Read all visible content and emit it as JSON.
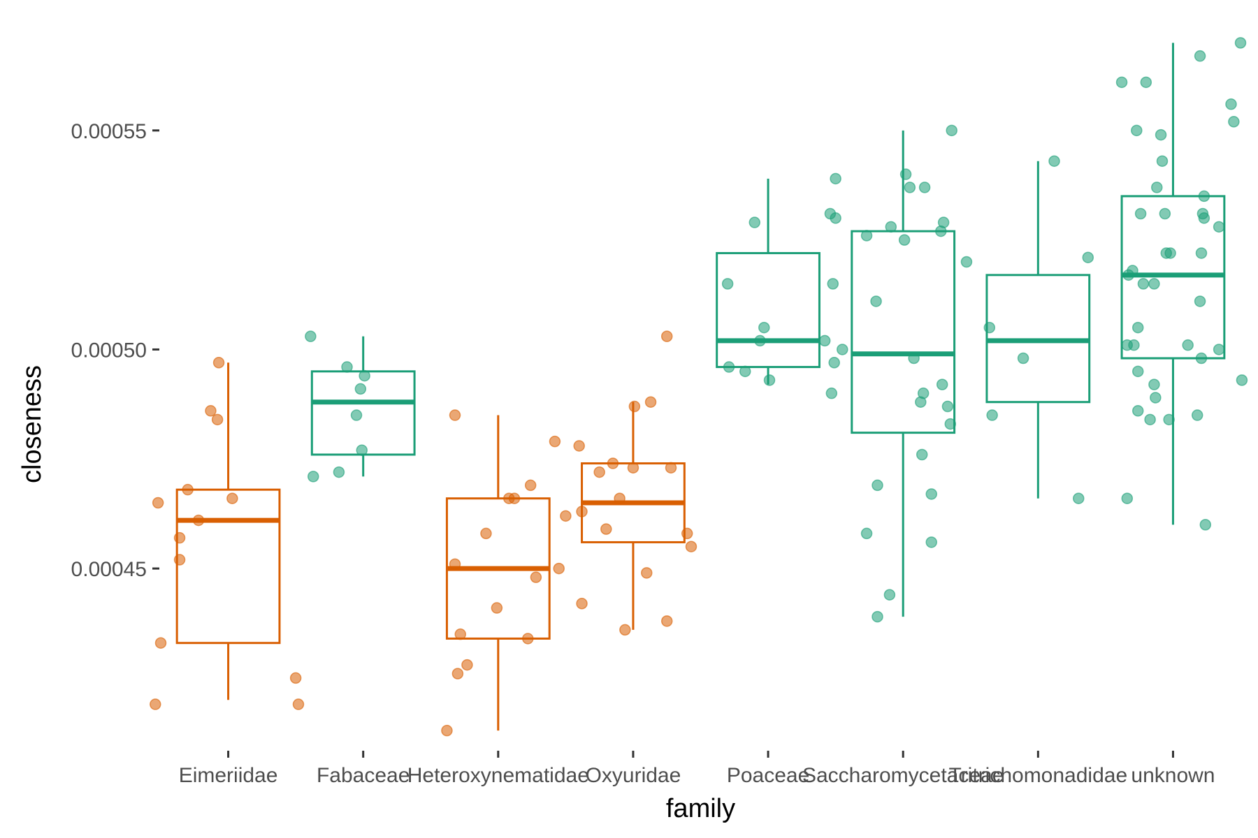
{
  "chart_data": {
    "type": "box",
    "xlabel": "family",
    "ylabel": "closeness",
    "ylim": [
      0.00041,
      0.000575
    ],
    "y_ticks": [
      {
        "value": 0.00045,
        "label": "0.00045"
      },
      {
        "value": 0.0005,
        "label": "0.00050"
      },
      {
        "value": 0.00055,
        "label": "0.00055"
      }
    ],
    "grid": false,
    "legend": "none",
    "colors": {
      "orange": "#d95f02",
      "green": "#1b9e77"
    },
    "groups": [
      {
        "category": "Eimeriidae",
        "color": "orange",
        "whisker_low": 0.00042,
        "q1": 0.000433,
        "median": 0.000461,
        "q3": 0.000468,
        "whisker_high": 0.000497,
        "points": [
          {
            "dx": -0.52,
            "y": 0.000465
          },
          {
            "dx": -0.36,
            "y": 0.000457
          },
          {
            "dx": -0.36,
            "y": 0.000452
          },
          {
            "dx": -0.3,
            "y": 0.000468
          },
          {
            "dx": -0.22,
            "y": 0.000461
          },
          {
            "dx": -0.13,
            "y": 0.000486
          },
          {
            "dx": -0.08,
            "y": 0.000484
          },
          {
            "dx": -0.07,
            "y": 0.000497
          },
          {
            "dx": 0.03,
            "y": 0.000466
          },
          {
            "dx": -0.5,
            "y": 0.000433
          },
          {
            "dx": -0.54,
            "y": 0.000419
          },
          {
            "dx": 0.5,
            "y": 0.000425
          },
          {
            "dx": 0.52,
            "y": 0.000419
          }
        ]
      },
      {
        "category": "Fabaceae",
        "color": "green",
        "whisker_low": 0.000471,
        "q1": 0.000476,
        "median": 0.000488,
        "q3": 0.000495,
        "whisker_high": 0.000503,
        "points": [
          {
            "dx": -0.39,
            "y": 0.000503
          },
          {
            "dx": -0.12,
            "y": 0.000496
          },
          {
            "dx": 0.01,
            "y": 0.000494
          },
          {
            "dx": -0.02,
            "y": 0.000491
          },
          {
            "dx": -0.05,
            "y": 0.000485
          },
          {
            "dx": -0.01,
            "y": 0.000477
          },
          {
            "dx": -0.18,
            "y": 0.000472
          },
          {
            "dx": -0.37,
            "y": 0.000471
          }
        ]
      },
      {
        "category": "Heteroxynematidae",
        "color": "orange",
        "whisker_low": 0.000413,
        "q1": 0.000434,
        "median": 0.00045,
        "q3": 0.000466,
        "whisker_high": 0.000485,
        "points": [
          {
            "dx": -0.32,
            "y": 0.000485
          },
          {
            "dx": 0.42,
            "y": 0.000479
          },
          {
            "dx": 0.24,
            "y": 0.000469
          },
          {
            "dx": 0.08,
            "y": 0.000466
          },
          {
            "dx": 0.12,
            "y": 0.000466
          },
          {
            "dx": -0.09,
            "y": 0.000458
          },
          {
            "dx": -0.32,
            "y": 0.000451
          },
          {
            "dx": 0.45,
            "y": 0.00045
          },
          {
            "dx": 0.28,
            "y": 0.000448
          },
          {
            "dx": -0.01,
            "y": 0.000441
          },
          {
            "dx": -0.28,
            "y": 0.000435
          },
          {
            "dx": 0.22,
            "y": 0.000434
          },
          {
            "dx": -0.23,
            "y": 0.000428
          },
          {
            "dx": -0.3,
            "y": 0.000426
          },
          {
            "dx": -0.38,
            "y": 0.000413
          }
        ]
      },
      {
        "category": "Oxyuridae",
        "color": "orange",
        "whisker_low": 0.000436,
        "q1": 0.000456,
        "median": 0.000465,
        "q3": 0.000474,
        "whisker_high": 0.000488,
        "points": [
          {
            "dx": 0.25,
            "y": 0.000503
          },
          {
            "dx": 0.13,
            "y": 0.000488
          },
          {
            "dx": 0.01,
            "y": 0.000487
          },
          {
            "dx": -0.4,
            "y": 0.000478
          },
          {
            "dx": -0.15,
            "y": 0.000474
          },
          {
            "dx": -0.25,
            "y": 0.000472
          },
          {
            "dx": 0.0,
            "y": 0.000473
          },
          {
            "dx": 0.28,
            "y": 0.000473
          },
          {
            "dx": -0.1,
            "y": 0.000466
          },
          {
            "dx": -0.38,
            "y": 0.000463
          },
          {
            "dx": -0.5,
            "y": 0.000462
          },
          {
            "dx": -0.2,
            "y": 0.000459
          },
          {
            "dx": 0.4,
            "y": 0.000458
          },
          {
            "dx": 0.43,
            "y": 0.000455
          },
          {
            "dx": 0.1,
            "y": 0.000449
          },
          {
            "dx": -0.38,
            "y": 0.000442
          },
          {
            "dx": 0.25,
            "y": 0.000438
          },
          {
            "dx": -0.06,
            "y": 0.000436
          }
        ]
      },
      {
        "category": "Poaceae",
        "color": "green",
        "whisker_low": 0.000492,
        "q1": 0.000496,
        "median": 0.000502,
        "q3": 0.000522,
        "whisker_high": 0.000539,
        "points": [
          {
            "dx": 0.5,
            "y": 0.000539
          },
          {
            "dx": -0.1,
            "y": 0.000529
          },
          {
            "dx": 0.46,
            "y": 0.000531
          },
          {
            "dx": -0.3,
            "y": 0.000515
          },
          {
            "dx": -0.03,
            "y": 0.000505
          },
          {
            "dx": -0.06,
            "y": 0.000502
          },
          {
            "dx": 0.42,
            "y": 0.000502
          },
          {
            "dx": 0.49,
            "y": 0.000497
          },
          {
            "dx": -0.29,
            "y": 0.000496
          },
          {
            "dx": -0.17,
            "y": 0.000495
          },
          {
            "dx": 0.01,
            "y": 0.000493
          }
        ]
      },
      {
        "category": "Saccharomycetaceae",
        "color": "green",
        "whisker_low": 0.000439,
        "q1": 0.000481,
        "median": 0.000499,
        "q3": 0.000527,
        "whisker_high": 0.00055,
        "points": [
          {
            "dx": 0.36,
            "y": 0.00055
          },
          {
            "dx": 0.02,
            "y": 0.00054
          },
          {
            "dx": 0.05,
            "y": 0.000537
          },
          {
            "dx": 0.16,
            "y": 0.000537
          },
          {
            "dx": -0.5,
            "y": 0.00053
          },
          {
            "dx": -0.09,
            "y": 0.000528
          },
          {
            "dx": 0.3,
            "y": 0.000529
          },
          {
            "dx": 0.28,
            "y": 0.000527
          },
          {
            "dx": -0.27,
            "y": 0.000526
          },
          {
            "dx": 0.01,
            "y": 0.000525
          },
          {
            "dx": 0.47,
            "y": 0.00052
          },
          {
            "dx": -0.52,
            "y": 0.000515
          },
          {
            "dx": -0.2,
            "y": 0.000511
          },
          {
            "dx": -0.45,
            "y": 0.0005
          },
          {
            "dx": 0.08,
            "y": 0.000498
          },
          {
            "dx": 0.29,
            "y": 0.000492
          },
          {
            "dx": 0.15,
            "y": 0.00049
          },
          {
            "dx": -0.53,
            "y": 0.00049
          },
          {
            "dx": 0.13,
            "y": 0.000488
          },
          {
            "dx": 0.33,
            "y": 0.000487
          },
          {
            "dx": 0.35,
            "y": 0.000483
          },
          {
            "dx": 0.14,
            "y": 0.000476
          },
          {
            "dx": -0.19,
            "y": 0.000469
          },
          {
            "dx": 0.21,
            "y": 0.000467
          },
          {
            "dx": -0.27,
            "y": 0.000458
          },
          {
            "dx": 0.21,
            "y": 0.000456
          },
          {
            "dx": -0.1,
            "y": 0.000444
          },
          {
            "dx": -0.19,
            "y": 0.000439
          }
        ]
      },
      {
        "category": "Tritrichomonadidae",
        "color": "green",
        "whisker_low": 0.000466,
        "q1": 0.000488,
        "median": 0.000502,
        "q3": 0.000517,
        "whisker_high": 0.000543,
        "points": [
          {
            "dx": 0.12,
            "y": 0.000543
          },
          {
            "dx": 0.37,
            "y": 0.000521
          },
          {
            "dx": -0.36,
            "y": 0.000505
          },
          {
            "dx": -0.11,
            "y": 0.000498
          },
          {
            "dx": -0.34,
            "y": 0.000485
          },
          {
            "dx": 0.3,
            "y": 0.000466
          }
        ]
      },
      {
        "category": "unknown",
        "color": "green",
        "whisker_low": 0.00046,
        "q1": 0.000498,
        "median": 0.000517,
        "q3": 0.000535,
        "whisker_high": 0.00057,
        "points": [
          {
            "dx": 0.5,
            "y": 0.00057
          },
          {
            "dx": 0.2,
            "y": 0.000567
          },
          {
            "dx": -0.38,
            "y": 0.000561
          },
          {
            "dx": -0.2,
            "y": 0.000561
          },
          {
            "dx": 0.43,
            "y": 0.000556
          },
          {
            "dx": 0.45,
            "y": 0.000552
          },
          {
            "dx": -0.27,
            "y": 0.00055
          },
          {
            "dx": -0.09,
            "y": 0.000549
          },
          {
            "dx": -0.08,
            "y": 0.000543
          },
          {
            "dx": -0.12,
            "y": 0.000537
          },
          {
            "dx": 0.23,
            "y": 0.000535
          },
          {
            "dx": -0.24,
            "y": 0.000531
          },
          {
            "dx": -0.06,
            "y": 0.000531
          },
          {
            "dx": 0.22,
            "y": 0.000531
          },
          {
            "dx": 0.23,
            "y": 0.00053
          },
          {
            "dx": 0.34,
            "y": 0.000528
          },
          {
            "dx": 0.21,
            "y": 0.000522
          },
          {
            "dx": -0.05,
            "y": 0.000522
          },
          {
            "dx": -0.02,
            "y": 0.000522
          },
          {
            "dx": -0.3,
            "y": 0.000518
          },
          {
            "dx": -0.33,
            "y": 0.000517
          },
          {
            "dx": -0.22,
            "y": 0.000515
          },
          {
            "dx": -0.14,
            "y": 0.000515
          },
          {
            "dx": 0.2,
            "y": 0.000511
          },
          {
            "dx": -0.26,
            "y": 0.000505
          },
          {
            "dx": -0.34,
            "y": 0.000501
          },
          {
            "dx": -0.29,
            "y": 0.000501
          },
          {
            "dx": 0.11,
            "y": 0.000501
          },
          {
            "dx": 0.34,
            "y": 0.0005
          },
          {
            "dx": 0.21,
            "y": 0.000498
          },
          {
            "dx": -0.26,
            "y": 0.000495
          },
          {
            "dx": -0.14,
            "y": 0.000492
          },
          {
            "dx": -0.13,
            "y": 0.000489
          },
          {
            "dx": -0.26,
            "y": 0.000486
          },
          {
            "dx": -0.17,
            "y": 0.000484
          },
          {
            "dx": -0.03,
            "y": 0.000484
          },
          {
            "dx": 0.18,
            "y": 0.000485
          },
          {
            "dx": 0.51,
            "y": 0.000493
          },
          {
            "dx": -0.34,
            "y": 0.000466
          },
          {
            "dx": 0.24,
            "y": 0.00046
          }
        ]
      }
    ]
  }
}
